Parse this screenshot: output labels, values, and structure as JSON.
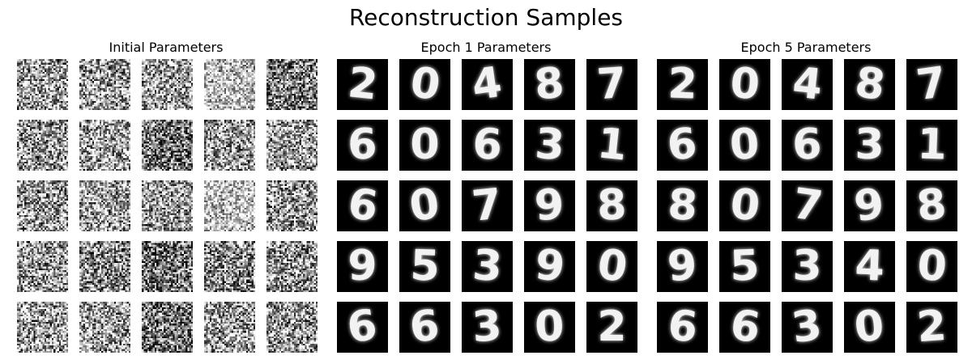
{
  "figure": {
    "title": "Reconstruction Samples"
  },
  "panels": [
    {
      "title": "Initial Parameters",
      "kind": "noise",
      "tiles": [
        {
          "mean": 0.62,
          "contrast": 0.55
        },
        {
          "mean": 0.63,
          "contrast": 0.55
        },
        {
          "mean": 0.62,
          "contrast": 0.55
        },
        {
          "mean": 0.76,
          "contrast": 0.45
        },
        {
          "mean": 0.48,
          "contrast": 0.55
        },
        {
          "mean": 0.6,
          "contrast": 0.55
        },
        {
          "mean": 0.64,
          "contrast": 0.55
        },
        {
          "mean": 0.45,
          "contrast": 0.55
        },
        {
          "mean": 0.6,
          "contrast": 0.55
        },
        {
          "mean": 0.62,
          "contrast": 0.55
        },
        {
          "mean": 0.62,
          "contrast": 0.55
        },
        {
          "mean": 0.66,
          "contrast": 0.55
        },
        {
          "mean": 0.6,
          "contrast": 0.55
        },
        {
          "mean": 0.78,
          "contrast": 0.45
        },
        {
          "mean": 0.6,
          "contrast": 0.55
        },
        {
          "mean": 0.62,
          "contrast": 0.55
        },
        {
          "mean": 0.52,
          "contrast": 0.55
        },
        {
          "mean": 0.45,
          "contrast": 0.55
        },
        {
          "mean": 0.55,
          "contrast": 0.55
        },
        {
          "mean": 0.6,
          "contrast": 0.55
        },
        {
          "mean": 0.62,
          "contrast": 0.55
        },
        {
          "mean": 0.65,
          "contrast": 0.55
        },
        {
          "mean": 0.44,
          "contrast": 0.55
        },
        {
          "mean": 0.63,
          "contrast": 0.55
        },
        {
          "mean": 0.6,
          "contrast": 0.55
        }
      ]
    },
    {
      "title": "Epoch 1 Parameters",
      "kind": "digits",
      "digits": [
        "2",
        "0",
        "4",
        "8",
        "7",
        "6",
        "0",
        "6",
        "3",
        "1",
        "6",
        "0",
        "7",
        "9",
        "8",
        "9",
        "5",
        "3",
        "9",
        "0",
        "6",
        "6",
        "3",
        "0",
        "2"
      ]
    },
    {
      "title": "Epoch 5 Parameters",
      "kind": "digits",
      "digits": [
        "2",
        "0",
        "4",
        "8",
        "7",
        "6",
        "0",
        "6",
        "3",
        "1",
        "8",
        "0",
        "7",
        "9",
        "8",
        "9",
        "5",
        "3",
        "4",
        "0",
        "6",
        "6",
        "3",
        "0",
        "2"
      ]
    }
  ]
}
